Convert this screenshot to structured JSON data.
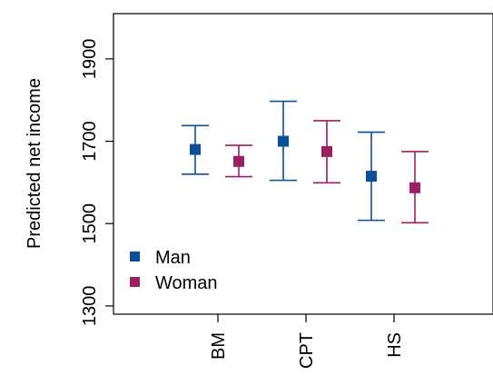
{
  "chart_data": {
    "type": "scatter",
    "subtype": "point-with-error-bars",
    "title": "",
    "ylabel": "Predicted net income",
    "xlabel": "",
    "ylim": [
      1280,
      2010
    ],
    "y_ticks": [
      1300,
      1500,
      1700,
      1900
    ],
    "categories": [
      "BM",
      "CPT",
      "HS"
    ],
    "grid": false,
    "legend_position": "bottom-left",
    "series": [
      {
        "name": "Man",
        "color": "#0b4f96",
        "values": [
          1680,
          1700,
          1615
        ],
        "lower": [
          1620,
          1605,
          1508
        ],
        "upper": [
          1738,
          1797,
          1722
        ]
      },
      {
        "name": "Woman",
        "color": "#9c1f61",
        "values": [
          1651,
          1675,
          1587
        ],
        "lower": [
          1614,
          1599,
          1502
        ],
        "upper": [
          1690,
          1750,
          1675
        ]
      }
    ]
  }
}
